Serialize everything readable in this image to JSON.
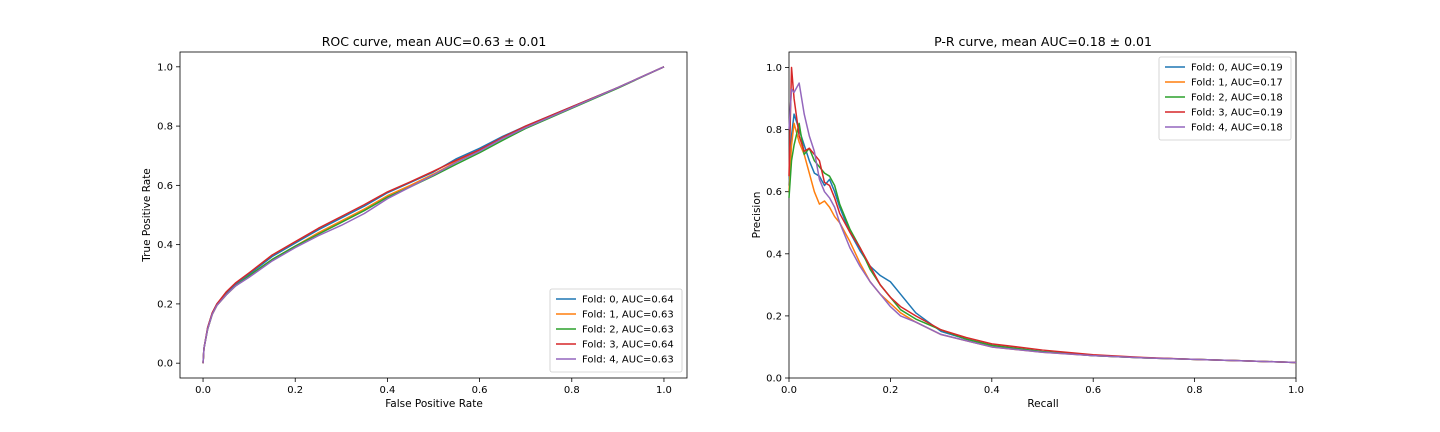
{
  "colors": {
    "fold_0": "#1f77b4",
    "fold_1": "#ff7f0e",
    "fold_2": "#2ca02c",
    "fold_3": "#d62728",
    "fold_4": "#9467bd"
  },
  "chart_data": [
    {
      "type": "line",
      "title": "ROC curve, mean AUC=0.63 ± 0.01",
      "xlabel": "False Positive Rate",
      "ylabel": "True Positive Rate",
      "xlim": [
        -0.05,
        1.05
      ],
      "ylim": [
        -0.05,
        1.05
      ],
      "xticks": [
        0.0,
        0.2,
        0.4,
        0.6,
        0.8,
        1.0
      ],
      "yticks": [
        0.0,
        0.2,
        0.4,
        0.6,
        0.8,
        1.0
      ],
      "xtick_labels": [
        "0.0",
        "0.2",
        "0.4",
        "0.6",
        "0.8",
        "1.0"
      ],
      "ytick_labels": [
        "0.0",
        "0.2",
        "0.4",
        "0.6",
        "0.8",
        "1.0"
      ],
      "grid": false,
      "legend_position": "lower-right",
      "series": [
        {
          "name": "Fold: 0, AUC=0.64",
          "color_key": "fold_0",
          "x": [
            0,
            0.002,
            0.01,
            0.02,
            0.03,
            0.05,
            0.07,
            0.1,
            0.15,
            0.2,
            0.25,
            0.3,
            0.35,
            0.4,
            0.45,
            0.5,
            0.55,
            0.6,
            0.65,
            0.7,
            0.8,
            0.9,
            1.0
          ],
          "y": [
            0,
            0.05,
            0.12,
            0.17,
            0.2,
            0.235,
            0.265,
            0.3,
            0.36,
            0.405,
            0.45,
            0.49,
            0.53,
            0.575,
            0.61,
            0.645,
            0.69,
            0.725,
            0.765,
            0.8,
            0.865,
            0.93,
            1.0
          ]
        },
        {
          "name": "Fold: 1, AUC=0.63",
          "color_key": "fold_1",
          "x": [
            0,
            0.002,
            0.01,
            0.02,
            0.03,
            0.05,
            0.07,
            0.1,
            0.15,
            0.2,
            0.25,
            0.3,
            0.35,
            0.4,
            0.45,
            0.5,
            0.55,
            0.6,
            0.65,
            0.7,
            0.8,
            0.9,
            1.0
          ],
          "y": [
            0,
            0.05,
            0.115,
            0.165,
            0.195,
            0.23,
            0.26,
            0.295,
            0.35,
            0.395,
            0.44,
            0.48,
            0.52,
            0.565,
            0.6,
            0.638,
            0.68,
            0.718,
            0.76,
            0.795,
            0.862,
            0.93,
            1.0
          ]
        },
        {
          "name": "Fold: 2, AUC=0.63",
          "color_key": "fold_2",
          "x": [
            0,
            0.002,
            0.01,
            0.02,
            0.03,
            0.05,
            0.07,
            0.1,
            0.15,
            0.2,
            0.25,
            0.3,
            0.35,
            0.4,
            0.45,
            0.5,
            0.55,
            0.6,
            0.65,
            0.7,
            0.8,
            0.9,
            1.0
          ],
          "y": [
            0,
            0.05,
            0.115,
            0.165,
            0.195,
            0.23,
            0.26,
            0.295,
            0.35,
            0.395,
            0.435,
            0.475,
            0.515,
            0.56,
            0.595,
            0.632,
            0.672,
            0.71,
            0.752,
            0.792,
            0.86,
            0.928,
            1.0
          ]
        },
        {
          "name": "Fold: 3, AUC=0.64",
          "color_key": "fold_3",
          "x": [
            0,
            0.002,
            0.01,
            0.02,
            0.03,
            0.05,
            0.07,
            0.1,
            0.15,
            0.2,
            0.25,
            0.3,
            0.35,
            0.4,
            0.45,
            0.5,
            0.55,
            0.6,
            0.65,
            0.7,
            0.8,
            0.9,
            1.0
          ],
          "y": [
            0,
            0.05,
            0.12,
            0.17,
            0.2,
            0.24,
            0.27,
            0.305,
            0.365,
            0.41,
            0.455,
            0.495,
            0.535,
            0.578,
            0.612,
            0.648,
            0.685,
            0.72,
            0.762,
            0.8,
            0.865,
            0.93,
            1.0
          ]
        },
        {
          "name": "Fold: 4, AUC=0.63",
          "color_key": "fold_4",
          "x": [
            0,
            0.002,
            0.01,
            0.02,
            0.03,
            0.05,
            0.07,
            0.1,
            0.15,
            0.2,
            0.25,
            0.3,
            0.35,
            0.4,
            0.45,
            0.5,
            0.55,
            0.6,
            0.65,
            0.7,
            0.8,
            0.9,
            1.0
          ],
          "y": [
            0,
            0.05,
            0.115,
            0.165,
            0.195,
            0.23,
            0.26,
            0.29,
            0.345,
            0.39,
            0.43,
            0.465,
            0.505,
            0.555,
            0.595,
            0.635,
            0.678,
            0.715,
            0.758,
            0.795,
            0.862,
            0.93,
            1.0
          ]
        }
      ]
    },
    {
      "type": "line",
      "title": "P-R curve, mean AUC=0.18 ± 0.01",
      "xlabel": "Recall",
      "ylabel": "Precision",
      "xlim": [
        0.0,
        1.0
      ],
      "ylim": [
        0.0,
        1.05
      ],
      "xticks": [
        0.0,
        0.2,
        0.4,
        0.6,
        0.8,
        1.0
      ],
      "yticks": [
        0.0,
        0.2,
        0.4,
        0.6,
        0.8,
        1.0
      ],
      "xtick_labels": [
        "0.0",
        "0.2",
        "0.4",
        "0.6",
        "0.8",
        "1.0"
      ],
      "ytick_labels": [
        "0.0",
        "0.2",
        "0.4",
        "0.6",
        "0.8",
        "1.0"
      ],
      "grid": false,
      "legend_position": "upper-right",
      "series": [
        {
          "name": "Fold: 0, AUC=0.19",
          "color_key": "fold_0",
          "x": [
            0,
            0.005,
            0.01,
            0.02,
            0.03,
            0.04,
            0.05,
            0.06,
            0.07,
            0.08,
            0.09,
            0.1,
            0.12,
            0.14,
            0.16,
            0.18,
            0.2,
            0.22,
            0.25,
            0.3,
            0.35,
            0.4,
            0.5,
            0.6,
            0.7,
            0.8,
            0.9,
            1.0
          ],
          "y": [
            0.62,
            0.78,
            0.85,
            0.8,
            0.75,
            0.7,
            0.66,
            0.65,
            0.62,
            0.64,
            0.6,
            0.55,
            0.47,
            0.41,
            0.36,
            0.33,
            0.31,
            0.27,
            0.21,
            0.15,
            0.125,
            0.105,
            0.085,
            0.072,
            0.065,
            0.06,
            0.055,
            0.05
          ]
        },
        {
          "name": "Fold: 1, AUC=0.17",
          "color_key": "fold_1",
          "x": [
            0,
            0.005,
            0.01,
            0.02,
            0.03,
            0.04,
            0.05,
            0.06,
            0.07,
            0.08,
            0.09,
            0.1,
            0.12,
            0.14,
            0.16,
            0.18,
            0.2,
            0.22,
            0.25,
            0.3,
            0.35,
            0.4,
            0.5,
            0.6,
            0.7,
            0.8,
            0.9,
            1.0
          ],
          "y": [
            0.6,
            0.75,
            0.82,
            0.76,
            0.72,
            0.66,
            0.6,
            0.56,
            0.57,
            0.55,
            0.52,
            0.5,
            0.44,
            0.37,
            0.31,
            0.27,
            0.24,
            0.21,
            0.18,
            0.14,
            0.12,
            0.1,
            0.083,
            0.072,
            0.065,
            0.06,
            0.055,
            0.05
          ]
        },
        {
          "name": "Fold: 2, AUC=0.18",
          "color_key": "fold_2",
          "x": [
            0,
            0.005,
            0.01,
            0.02,
            0.03,
            0.04,
            0.05,
            0.06,
            0.07,
            0.08,
            0.09,
            0.1,
            0.12,
            0.14,
            0.16,
            0.18,
            0.2,
            0.22,
            0.25,
            0.3,
            0.35,
            0.4,
            0.5,
            0.6,
            0.7,
            0.8,
            0.9,
            1.0
          ],
          "y": [
            0.58,
            0.7,
            0.75,
            0.82,
            0.72,
            0.74,
            0.7,
            0.68,
            0.66,
            0.65,
            0.62,
            0.56,
            0.48,
            0.42,
            0.35,
            0.3,
            0.26,
            0.22,
            0.19,
            0.155,
            0.125,
            0.105,
            0.085,
            0.072,
            0.065,
            0.06,
            0.055,
            0.05
          ]
        },
        {
          "name": "Fold: 3, AUC=0.19",
          "color_key": "fold_3",
          "x": [
            0,
            0.005,
            0.01,
            0.02,
            0.03,
            0.04,
            0.05,
            0.06,
            0.07,
            0.08,
            0.09,
            0.1,
            0.12,
            0.14,
            0.16,
            0.18,
            0.2,
            0.22,
            0.25,
            0.3,
            0.35,
            0.4,
            0.5,
            0.6,
            0.7,
            0.8,
            0.9,
            1.0
          ],
          "y": [
            0.65,
            1.0,
            0.9,
            0.78,
            0.73,
            0.74,
            0.72,
            0.7,
            0.63,
            0.62,
            0.58,
            0.53,
            0.47,
            0.42,
            0.36,
            0.3,
            0.26,
            0.23,
            0.2,
            0.155,
            0.13,
            0.11,
            0.09,
            0.075,
            0.066,
            0.06,
            0.055,
            0.05
          ]
        },
        {
          "name": "Fold: 4, AUC=0.18",
          "color_key": "fold_4",
          "x": [
            0,
            0.005,
            0.01,
            0.02,
            0.03,
            0.04,
            0.05,
            0.06,
            0.07,
            0.08,
            0.09,
            0.1,
            0.12,
            0.14,
            0.16,
            0.18,
            0.2,
            0.22,
            0.25,
            0.3,
            0.35,
            0.4,
            0.5,
            0.6,
            0.7,
            0.8,
            0.9,
            1.0
          ],
          "y": [
            0.8,
            0.93,
            0.92,
            0.95,
            0.85,
            0.78,
            0.73,
            0.64,
            0.6,
            0.58,
            0.55,
            0.5,
            0.42,
            0.36,
            0.31,
            0.27,
            0.23,
            0.2,
            0.18,
            0.14,
            0.12,
            0.1,
            0.083,
            0.072,
            0.065,
            0.06,
            0.055,
            0.05
          ]
        }
      ]
    }
  ]
}
